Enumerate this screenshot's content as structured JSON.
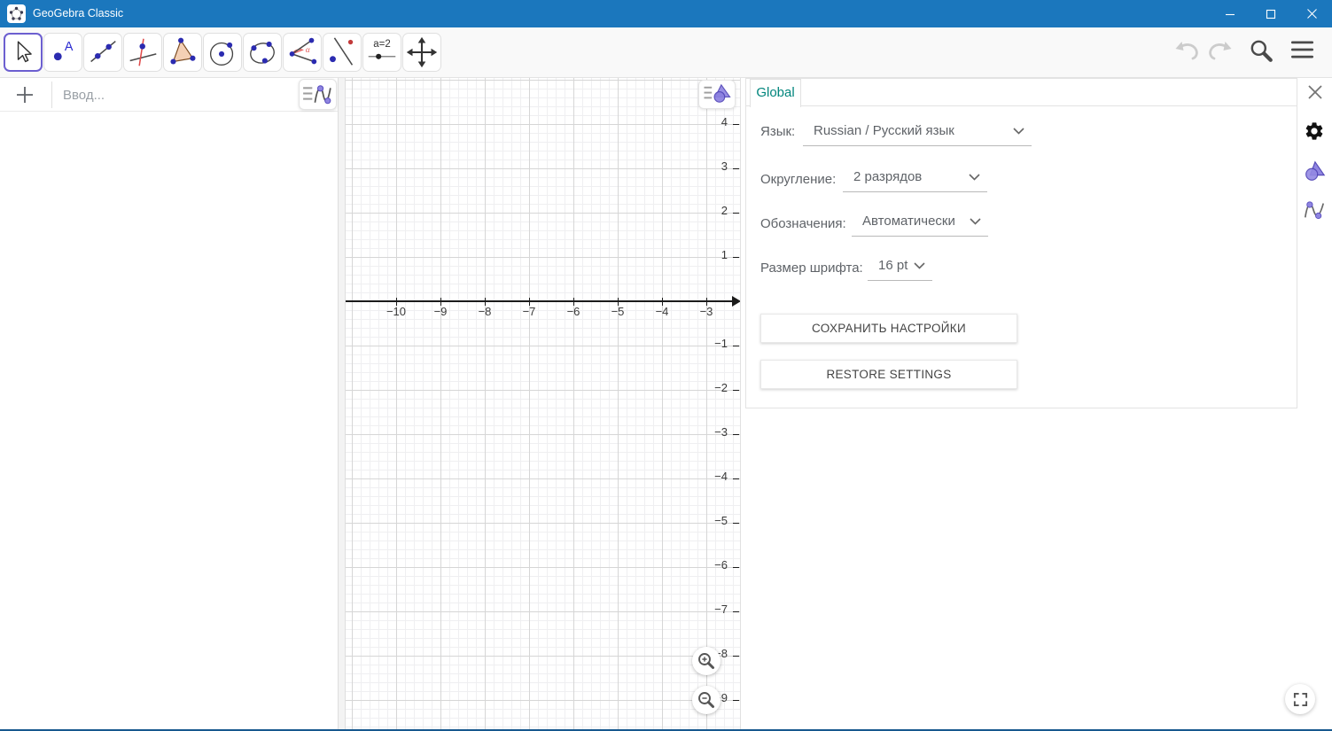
{
  "titlebar": {
    "title": "GeoGebra Classic"
  },
  "toolbar": {
    "selected_tool": "move-pointer",
    "slider_label": "a=2",
    "tools": [
      "move-pointer",
      "point-with-label",
      "line-through-two-points",
      "perpendicular-line",
      "polygon",
      "circle-with-center-through-point",
      "conic-through-points",
      "angle",
      "reflect-about-line",
      "slider",
      "move-graphics-view"
    ]
  },
  "algebra": {
    "input_placeholder": "Ввод..."
  },
  "graphics": {
    "x_ticks": [
      {
        "label": "−10",
        "value": -10
      },
      {
        "label": "−9",
        "value": -9
      },
      {
        "label": "−8",
        "value": -8
      },
      {
        "label": "−7",
        "value": -7
      },
      {
        "label": "−6",
        "value": -6
      },
      {
        "label": "−5",
        "value": -5
      },
      {
        "label": "−4",
        "value": -4
      },
      {
        "label": "−3",
        "value": -3
      }
    ],
    "y_ticks": [
      {
        "label": "4",
        "value": 4
      },
      {
        "label": "3",
        "value": 3
      },
      {
        "label": "2",
        "value": 2
      },
      {
        "label": "1",
        "value": 1
      },
      {
        "label": "−1",
        "value": -1
      },
      {
        "label": "−2",
        "value": -2
      },
      {
        "label": "−3",
        "value": -3
      },
      {
        "label": "−4",
        "value": -4
      },
      {
        "label": "−5",
        "value": -5
      },
      {
        "label": "−6",
        "value": -6
      },
      {
        "label": "−7",
        "value": -7
      },
      {
        "label": "−8",
        "value": -8
      },
      {
        "label": "−9",
        "value": -9
      }
    ],
    "grid": "on",
    "axis_x_range": [
      -10.8,
      -2.9
    ],
    "axis_y_range": [
      -9.6,
      4.7
    ]
  },
  "settings": {
    "tab_label": "Global",
    "fields": [
      {
        "label": "Язык:",
        "value": "Russian / Русский язык"
      },
      {
        "label": "Округление:",
        "value": "2 разрядов"
      },
      {
        "label": "Обозначения:",
        "value": "Автоматически"
      },
      {
        "label": "Размер шрифта:",
        "value": "16 pt"
      }
    ],
    "save_button": "СОХРАНИТЬ НАСТРОЙКИ",
    "restore_button": "RESTORE SETTINGS"
  },
  "icons": {
    "titlebar": [
      "geogebra-logo",
      "minimize-icon",
      "maximize-icon",
      "close-icon"
    ],
    "toolbar_right": [
      "undo-icon",
      "redo-icon",
      "search-icon",
      "menu-icon"
    ],
    "graphics": [
      "graphics-style-icon",
      "zoom-in-icon",
      "zoom-out-icon"
    ],
    "side_strip": [
      "close-icon",
      "gear-icon",
      "graphics-view-icon",
      "algebra-view-icon"
    ],
    "misc": [
      "plus-icon",
      "algebra-style-icon",
      "fullscreen-icon",
      "chevron-down-icon"
    ]
  },
  "colors": {
    "titlebar_blue": "#1b77bd",
    "tab_teal": "#00857c",
    "selected_tool_border": "#6c5fd0",
    "grid_major": "#d6d6d6",
    "grid_minor": "#efeff1",
    "point_blue": "#2b2bb0",
    "accent_red": "#d94a4a",
    "icon_purple": "#8b80e0",
    "window_bottom_border": "#17588e"
  }
}
